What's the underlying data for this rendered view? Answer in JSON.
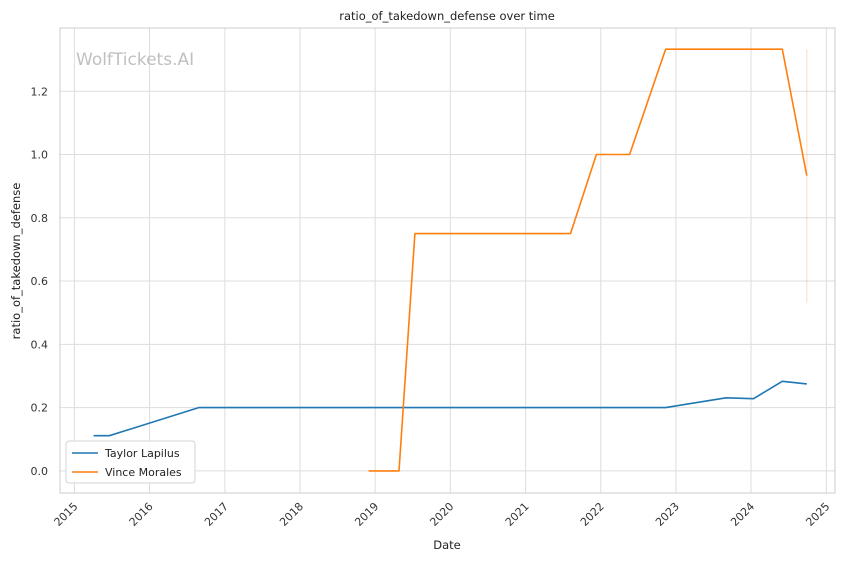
{
  "chart_data": {
    "type": "line",
    "title": "ratio_of_takedown_defense over time",
    "xlabel": "Date",
    "ylabel": "ratio_of_takedown_defense",
    "watermark": "WolfTickets.AI",
    "x_ticks": [
      "2015",
      "2016",
      "2017",
      "2018",
      "2019",
      "2020",
      "2021",
      "2022",
      "2023",
      "2024",
      "2025"
    ],
    "y_ticks": [
      "0.0",
      "0.2",
      "0.4",
      "0.6",
      "0.8",
      "1.0",
      "1.2"
    ],
    "xlim": [
      "2014-10-23",
      "2025-02-12"
    ],
    "ylim": [
      -0.07,
      1.4
    ],
    "grid": true,
    "legend_position": "lower-left",
    "series": [
      {
        "name": "Taylor Lapilus",
        "color": "#1f77b4",
        "points": [
          {
            "x": "2015-04-04",
            "y": 0.111
          },
          {
            "x": "2015-06-20",
            "y": 0.111
          },
          {
            "x": "2016-08-27",
            "y": 0.2
          },
          {
            "x": "2022-11-12",
            "y": 0.2
          },
          {
            "x": "2023-09-02",
            "y": 0.231
          },
          {
            "x": "2024-01-13",
            "y": 0.228
          },
          {
            "x": "2024-06-01",
            "y": 0.283
          },
          {
            "x": "2024-09-28",
            "y": 0.275
          }
        ]
      },
      {
        "name": "Vince Morales",
        "color": "#ff7f0e",
        "points": [
          {
            "x": "2018-11-30",
            "y": 0.0
          },
          {
            "x": "2019-04-27",
            "y": 0.0
          },
          {
            "x": "2019-07-13",
            "y": 0.75
          },
          {
            "x": "2021-08-07",
            "y": 0.75
          },
          {
            "x": "2021-12-11",
            "y": 1.0
          },
          {
            "x": "2022-05-21",
            "y": 1.0
          },
          {
            "x": "2022-11-12",
            "y": 1.333
          },
          {
            "x": "2024-06-01",
            "y": 1.333
          },
          {
            "x": "2024-09-28",
            "y": 0.933
          }
        ],
        "error_band": {
          "x": "2024-09-28",
          "low": 0.53,
          "high": 1.333
        }
      }
    ]
  }
}
